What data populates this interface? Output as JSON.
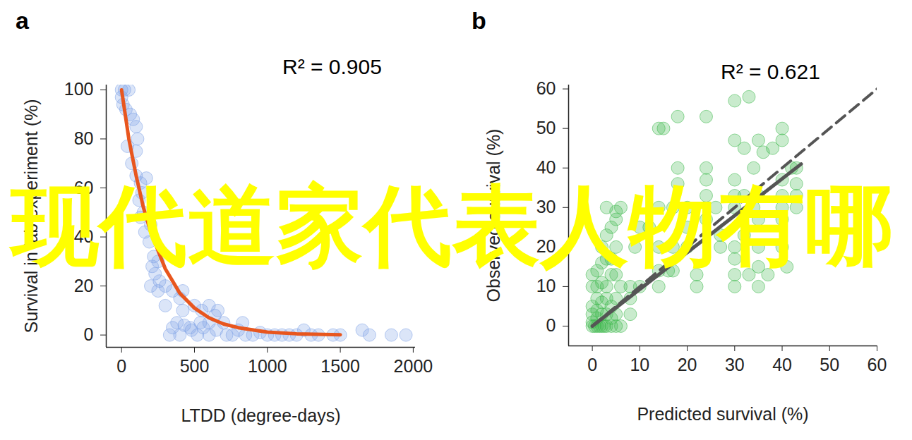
{
  "chart_data": [
    {
      "type": "scatter",
      "panel_label": "a",
      "annotation": "R² = 0.905",
      "x_label": "LTDD (degree-days)",
      "y_label": "Survival in lab experiment (%)",
      "xlim": [
        -105,
        2015
      ],
      "xticks": [
        0,
        500,
        1000,
        1500,
        2000
      ],
      "ylim": [
        -5,
        102
      ],
      "yticks": [
        0,
        20,
        40,
        60,
        80,
        100
      ],
      "grid": false,
      "series": [
        {
          "type": "scatter",
          "color": "#7fa3e6",
          "marker": "circle",
          "x": [
            0,
            20,
            50,
            0,
            10,
            30,
            60,
            80,
            100,
            110,
            100,
            40,
            70,
            100,
            130,
            140,
            170,
            120,
            150,
            130,
            200,
            160,
            190,
            220,
            250,
            210,
            230,
            260,
            300,
            200,
            350,
            250,
            420,
            400,
            300,
            420,
            500,
            550,
            600,
            350,
            400,
            430,
            480,
            520,
            560,
            600,
            640,
            650,
            700,
            720,
            760,
            800,
            830,
            850,
            900,
            950,
            1000,
            1050,
            1100,
            1150,
            1200,
            1250,
            1300,
            1350,
            1450,
            1500,
            1650,
            1700,
            1850,
            1950,
            600,
            660,
            540,
            470,
            330,
            380
          ],
          "values": [
            100,
            100,
            100,
            97,
            94,
            92,
            90,
            88,
            85,
            80,
            75,
            77,
            70,
            65,
            62,
            58,
            64,
            55,
            50,
            48,
            45,
            42,
            38,
            32,
            30,
            28,
            25,
            22,
            20,
            20,
            18,
            18,
            18,
            15,
            12,
            10,
            12,
            10,
            12,
            3,
            0,
            4,
            2,
            0,
            3,
            0,
            8,
            2,
            5,
            0,
            0,
            2,
            5,
            0,
            0,
            1,
            0,
            0,
            0,
            0,
            0,
            2,
            0,
            0,
            0,
            0,
            2,
            0,
            0,
            0,
            5,
            10,
            5,
            3,
            0,
            5
          ]
        },
        {
          "type": "line",
          "color": "#e8561e",
          "line_style": "solid",
          "x": [
            0,
            50,
            100,
            150,
            200,
            300,
            400,
            500,
            600,
            700,
            800,
            1000,
            1200,
            1500
          ],
          "values": [
            100,
            80,
            65,
            52,
            42,
            27,
            17,
            11,
            7,
            4.5,
            3,
            1.2,
            0.5,
            0.1
          ]
        }
      ]
    },
    {
      "type": "scatter",
      "panel_label": "b",
      "annotation": "R² = 0.621",
      "x_label": "Predicted survival (%)",
      "y_label": "Observed survival (%)",
      "xlim": [
        -5,
        60
      ],
      "xticks": [
        0,
        10,
        20,
        30,
        40,
        50,
        60
      ],
      "ylim": [
        -5,
        61
      ],
      "yticks": [
        0,
        10,
        20,
        30,
        40,
        50,
        60
      ],
      "grid": false,
      "series": [
        {
          "type": "scatter",
          "color": "#3cb84a",
          "marker": "circle",
          "x": [
            0,
            0.5,
            1,
            1.5,
            2,
            2.5,
            3,
            4,
            5,
            6,
            0,
            1,
            2,
            0,
            1,
            3,
            4,
            5,
            0,
            1,
            2,
            3,
            4,
            5,
            0,
            1,
            2,
            3,
            4,
            5,
            6,
            0,
            1,
            2,
            3,
            4,
            5,
            2,
            3,
            4,
            5,
            6,
            5,
            3,
            8,
            8,
            8,
            9,
            10,
            10,
            12,
            14,
            14,
            14,
            14,
            14,
            15,
            16,
            17,
            17,
            17,
            18,
            18,
            18,
            20,
            20,
            20,
            22,
            22,
            24,
            24,
            24,
            24,
            24,
            26,
            27,
            27,
            30,
            30,
            30,
            30,
            30,
            30,
            30,
            30,
            30,
            32,
            32,
            32,
            33,
            33,
            34,
            34,
            35,
            35,
            35,
            35,
            35,
            35,
            36,
            37,
            38,
            40,
            40,
            40,
            40,
            40,
            40,
            40,
            41,
            42,
            43,
            43,
            43,
            43
          ],
          "values": [
            0,
            0,
            0,
            0,
            0,
            0,
            0,
            0,
            0,
            0,
            1,
            2,
            3,
            3,
            4,
            3,
            2,
            3,
            5,
            7,
            6,
            7,
            5,
            7,
            10,
            10,
            11,
            10,
            13,
            13,
            10,
            13,
            14,
            16,
            17,
            17,
            20,
            20,
            23,
            25,
            27,
            30,
            29,
            30,
            3,
            7,
            10,
            20,
            10,
            25,
            25,
            10,
            14,
            20,
            30,
            50,
            50,
            14,
            14,
            20,
            30,
            36,
            53,
            40,
            20,
            25,
            30,
            10,
            13,
            27,
            33,
            37,
            40,
            53,
            30,
            20,
            23,
            10,
            13,
            17,
            20,
            30,
            33,
            37,
            47,
            57,
            23,
            33,
            45,
            58,
            13,
            30,
            40,
            10,
            15,
            20,
            27,
            33,
            47,
            44,
            13,
            45,
            20,
            27,
            30,
            33,
            37,
            47,
            50,
            15,
            40,
            33,
            30,
            36,
            40
          ]
        },
        {
          "type": "line",
          "color": "#555555",
          "line_style": "dashed",
          "x": [
            0,
            60
          ],
          "values": [
            0,
            60
          ]
        },
        {
          "type": "line",
          "color": "#555555",
          "line_style": "solid",
          "x": [
            0,
            44
          ],
          "values": [
            0,
            41
          ]
        }
      ]
    }
  ],
  "overlay_text": "现代道家代表人物有哪"
}
